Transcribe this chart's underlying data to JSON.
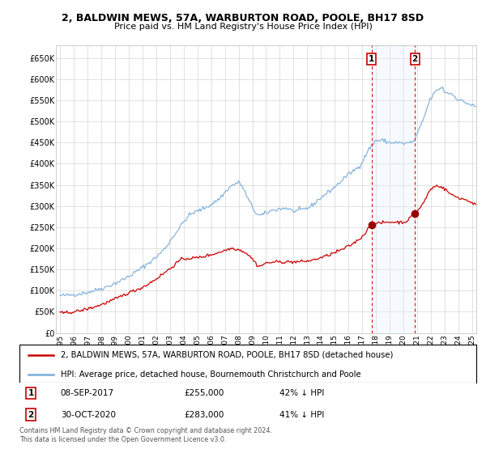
{
  "title": "2, BALDWIN MEWS, 57A, WARBURTON ROAD, POOLE, BH17 8SD",
  "subtitle": "Price paid vs. HM Land Registry's House Price Index (HPI)",
  "legend_line1": "2, BALDWIN MEWS, 57A, WARBURTON ROAD, POOLE, BH17 8SD (detached house)",
  "legend_line2": "HPI: Average price, detached house, Bournemouth Christchurch and Poole",
  "footer": "Contains HM Land Registry data © Crown copyright and database right 2024.\nThis data is licensed under the Open Government Licence v3.0.",
  "sale1_date": "08-SEP-2017",
  "sale1_price": "£255,000",
  "sale1_hpi": "42% ↓ HPI",
  "sale2_date": "30-OCT-2020",
  "sale2_price": "£283,000",
  "sale2_hpi": "41% ↓ HPI",
  "hpi_color": "#7aaddc",
  "sold_color": "#cc0000",
  "marker_color": "#990000",
  "shade_color": "#ddeeff",
  "background_color": "#ffffff",
  "grid_color": "#cccccc",
  "ylim_min": 0,
  "ylim_max": 680000,
  "yticks": [
    0,
    50000,
    100000,
    150000,
    200000,
    250000,
    300000,
    350000,
    400000,
    450000,
    500000,
    550000,
    600000,
    650000
  ],
  "ytick_labels": [
    "£0",
    "£50K",
    "£100K",
    "£150K",
    "£200K",
    "£250K",
    "£300K",
    "£350K",
    "£400K",
    "£450K",
    "£500K",
    "£550K",
    "£600K",
    "£650K"
  ],
  "xtick_years": [
    1995,
    1996,
    1997,
    1998,
    1999,
    2000,
    2001,
    2002,
    2003,
    2004,
    2005,
    2006,
    2007,
    2008,
    2009,
    2010,
    2011,
    2012,
    2013,
    2014,
    2015,
    2016,
    2017,
    2018,
    2019,
    2020,
    2021,
    2022,
    2023,
    2024,
    2025
  ],
  "sale1_year": 2017.69,
  "sale2_year": 2020.83,
  "sale1_value": 255000,
  "sale2_value": 283000
}
